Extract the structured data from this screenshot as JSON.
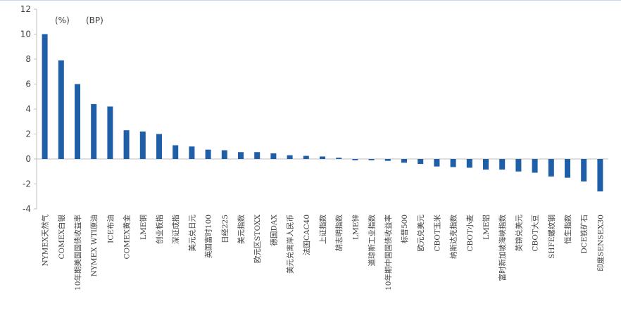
{
  "chart_data": {
    "type": "bar",
    "annotations": [
      "(%)",
      "(BP)"
    ],
    "categories": [
      "NYMEX天然气",
      "COMEX白银",
      "10年期美国国债收益率",
      "NYMEX WTI原油",
      "ICE布油",
      "COMEX黄金",
      "LME铜",
      "创业板指",
      "深证成指",
      "美元兑日元",
      "英国富时100",
      "日经225",
      "美元指数",
      "欧元区STOXX",
      "德国DAX",
      "美元兑离岸人民币",
      "法国CAC40",
      "上证指数",
      "胡志明指数",
      "LME锌",
      "道琼斯工业指数",
      "10年期中国国债收益率",
      "标普500",
      "欧元兑美元",
      "CBOT玉米",
      "纳斯达克指数",
      "CBOT小麦",
      "LME铝",
      "富时新加坡海峡指数",
      "英镑兑美元",
      "CBOT大豆",
      "SHFE螺纹钢",
      "恒生指数",
      "DCE铁矿石",
      "印度SENSEX30"
    ],
    "values": [
      10.0,
      7.9,
      6.0,
      4.4,
      4.2,
      2.3,
      2.2,
      2.0,
      1.1,
      1.0,
      0.75,
      0.7,
      0.55,
      0.55,
      0.45,
      0.3,
      0.25,
      0.2,
      0.1,
      -0.1,
      -0.1,
      -0.15,
      -0.3,
      -0.4,
      -0.6,
      -0.65,
      -0.7,
      -0.85,
      -0.85,
      -1.0,
      -1.1,
      -1.4,
      -1.5,
      -1.8,
      -2.6
    ],
    "color": "#1f5fa8",
    "ylim": [
      -4,
      12
    ],
    "yticks": [
      -4,
      -2,
      0,
      2,
      4,
      6,
      8,
      10,
      12
    ],
    "grid": false
  }
}
